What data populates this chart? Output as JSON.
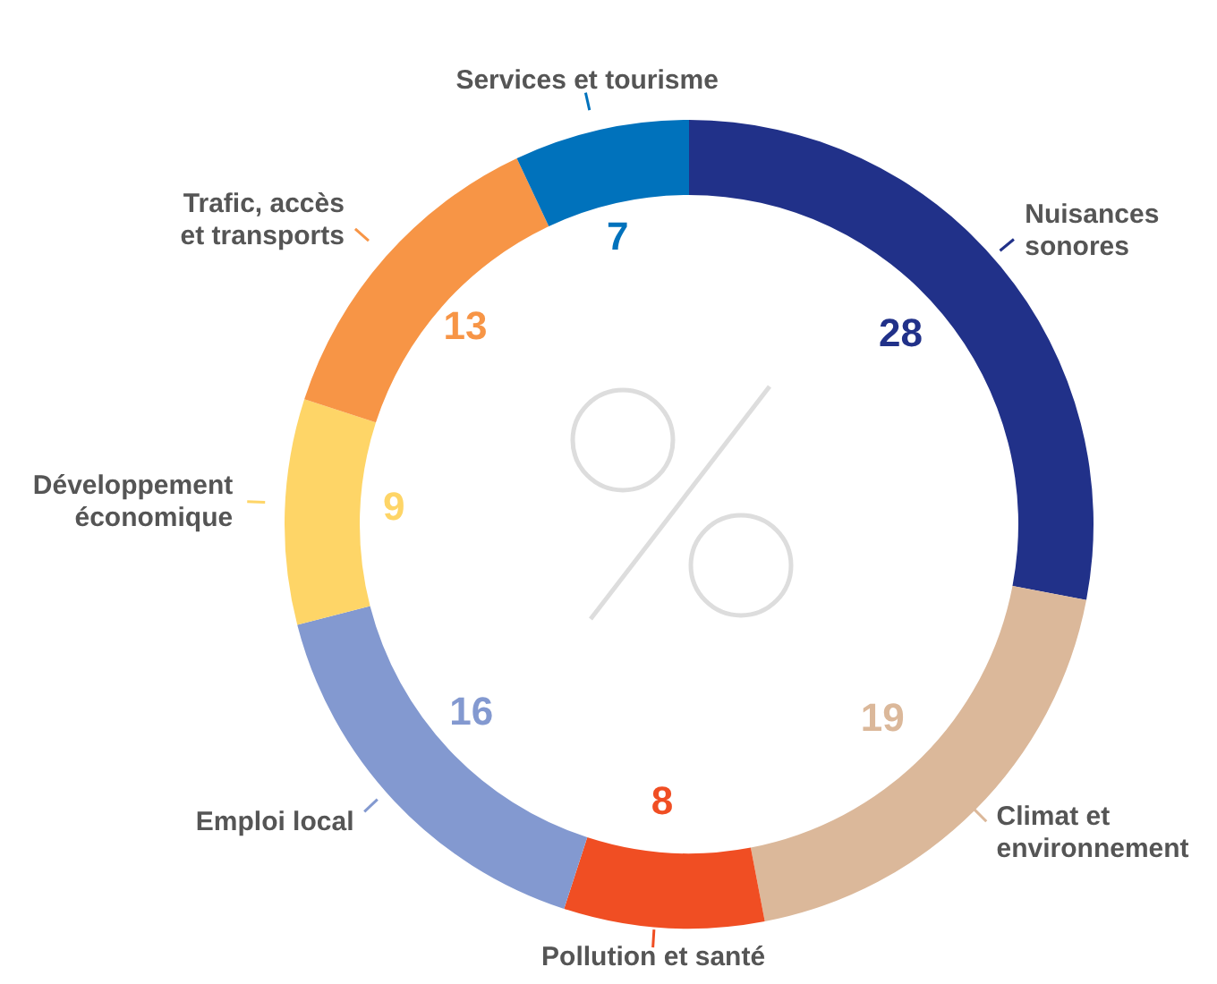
{
  "chart_data": {
    "type": "donut",
    "categories": [
      "Nuisances sonores",
      "Climat et environnement",
      "Pollution et santé",
      "Emploi local",
      "Développement économique",
      "Trafic, accès et transports",
      "Services et tourisme"
    ],
    "values": [
      28,
      19,
      8,
      16,
      9,
      13,
      7
    ],
    "colors": [
      "#213189",
      "#dbb89a",
      "#f04e23",
      "#8399d0",
      "#fed567",
      "#f79546",
      "#0072bc"
    ],
    "data_labels": true
  }
}
